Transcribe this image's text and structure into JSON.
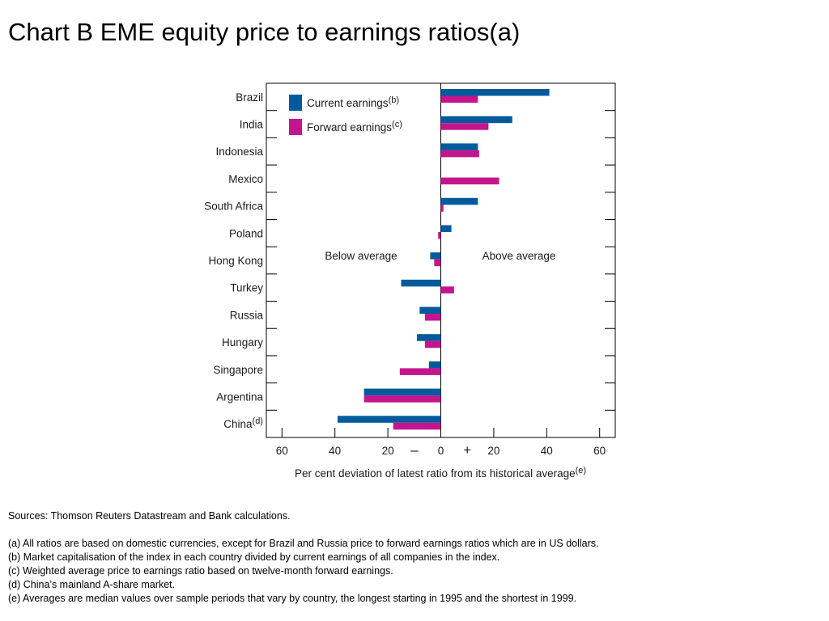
{
  "title": "Chart B  EME equity price to earnings ratios(a)",
  "chart_data": {
    "type": "bar",
    "orientation": "horizontal",
    "categories": [
      "Brazil",
      "India",
      "Indonesia",
      "Mexico",
      "South Africa",
      "Poland",
      "Hong Kong",
      "Turkey",
      "Russia",
      "Hungary",
      "Singapore",
      "Argentina",
      "China"
    ],
    "category_superscripts": {
      "China": "(d)"
    },
    "series": [
      {
        "name": "Current earnings",
        "superscript": "(b)",
        "color": "#005a9c",
        "values": [
          41,
          27,
          14,
          null,
          14,
          4,
          -4,
          -15,
          -8,
          -9,
          -4.5,
          -29,
          -39
        ]
      },
      {
        "name": "Forward earnings",
        "superscript": "(c)",
        "color": "#c4168c",
        "values": [
          14,
          18,
          14.5,
          22,
          1,
          -1,
          -2.5,
          5,
          -6,
          -6,
          -15.5,
          -29,
          -18
        ]
      }
    ],
    "xlim": [
      -66,
      66
    ],
    "x_ticks": [
      "60",
      "40",
      "20",
      "–",
      "0",
      "+",
      "20",
      "40",
      "60"
    ],
    "xlabel": "Per cent deviation of latest ratio from its historical average",
    "xlabel_superscript": "(e)",
    "annotations": {
      "left": "Below average",
      "right": "Above average"
    },
    "legend": "top-left",
    "grid": false
  },
  "notes": {
    "sources": "Sources:  Thomson Reuters Datastream and Bank calculations.",
    "footnotes": [
      "(a)  All ratios are based on domestic currencies, except for Brazil and Russia price to forward earnings ratios which are in US dollars.",
      "(b)  Market capitalisation of the index in each country divided by current earnings of all companies in the index.",
      "(c)  Weighted average price to earnings ratio based on twelve-month forward earnings.",
      "(d)  China’s mainland A-share market.",
      "(e)  Averages are median values over sample periods that vary by country, the longest starting in 1995 and the shortest in 1999."
    ]
  }
}
